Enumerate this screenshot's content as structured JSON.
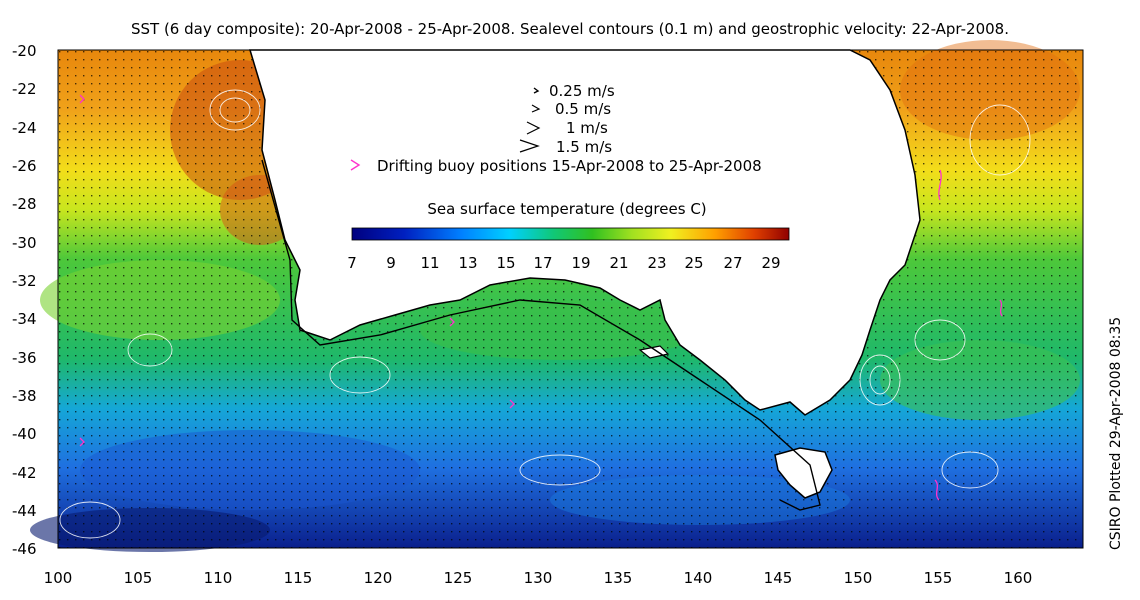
{
  "title": "SST (6 day composite): 20-Apr-2008 - 25-Apr-2008. Sealevel contours (0.1 m) and geostrophic velocity: 22-Apr-2008.",
  "side_label": "CSIRO Plotted 29-Apr-2008 08:35",
  "velocity_legend": [
    "0.25 m/s",
    "0.5 m/s",
    "1 m/s",
    "1.5 m/s"
  ],
  "buoy_legend": "Drifting buoy positions 15-Apr-2008 to 25-Apr-2008",
  "colorbar": {
    "title": "Sea surface temperature (degrees C)",
    "ticks": [
      "7",
      "9",
      "11",
      "13",
      "15",
      "17",
      "19",
      "21",
      "23",
      "25",
      "27",
      "29"
    ]
  },
  "axes": {
    "x_ticks": [
      "100",
      "105",
      "110",
      "115",
      "120",
      "125",
      "130",
      "135",
      "140",
      "145",
      "150",
      "155",
      "160"
    ],
    "y_ticks": [
      "-20",
      "-22",
      "-24",
      "-26",
      "-28",
      "-30",
      "-32",
      "-34",
      "-36",
      "-38",
      "-40",
      "-42",
      "-44",
      "-46"
    ],
    "lon_range": [
      100,
      164
    ],
    "lat_range": [
      -46,
      -20
    ]
  },
  "colors": {
    "land": "#ffffff",
    "coastline": "#000000",
    "contours": "#ffffff",
    "buoy": "#ff33cc"
  }
}
